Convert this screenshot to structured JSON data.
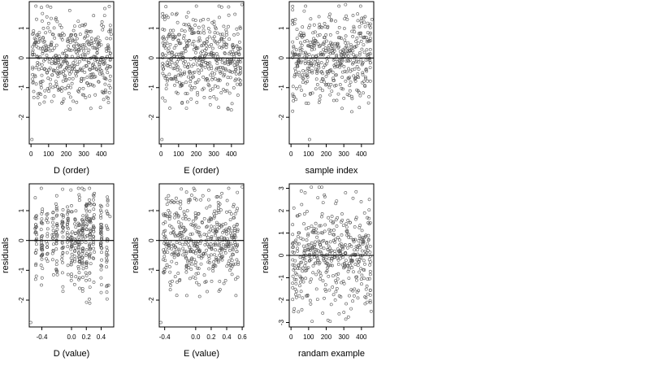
{
  "chart_data": [
    {
      "type": "scatter",
      "xlabel": "D (order)",
      "ylabel": "residuals",
      "xlim": [
        -10,
        470
      ],
      "ylim": [
        -2.9,
        1.9
      ],
      "xticks": [
        0,
        100,
        200,
        300,
        400
      ],
      "xtick_labels": [
        "0",
        "100",
        "200",
        "300",
        "400"
      ],
      "yticks": [
        -2,
        -1,
        0,
        1
      ],
      "ytick_labels": [
        "-2",
        "-1",
        "0",
        "1"
      ],
      "hline": 0,
      "sample_points": [
        [
          5,
          -2.75
        ],
        [
          30,
          0.4
        ],
        [
          65,
          1.5
        ],
        [
          140,
          1.3
        ],
        [
          220,
          1.6
        ],
        [
          300,
          -0.7
        ],
        [
          340,
          -1.7
        ],
        [
          440,
          -1.5
        ],
        [
          455,
          0.8
        ]
      ],
      "n_points": 450,
      "grid": false
    },
    {
      "type": "scatter",
      "xlabel": "E (order)",
      "ylabel": "residuals",
      "xlim": [
        -10,
        470
      ],
      "ylim": [
        -2.9,
        1.9
      ],
      "xticks": [
        0,
        100,
        200,
        300,
        400
      ],
      "xtick_labels": [
        "0",
        "100",
        "200",
        "300",
        "400"
      ],
      "yticks": [
        -2,
        -1,
        0,
        1
      ],
      "ytick_labels": [
        "-2",
        "-1",
        "0",
        "1"
      ],
      "hline": 0,
      "sample_points": [
        [
          5,
          -2.75
        ],
        [
          20,
          1.4
        ],
        [
          90,
          1.5
        ],
        [
          120,
          -1.5
        ],
        [
          240,
          1.3
        ],
        [
          380,
          -1.7
        ],
        [
          460,
          1.8
        ]
      ],
      "n_points": 450,
      "grid": false
    },
    {
      "type": "scatter",
      "xlabel": "sample index",
      "ylabel": "residuals",
      "xlim": [
        -10,
        470
      ],
      "ylim": [
        -2.9,
        1.9
      ],
      "xticks": [
        0,
        100,
        200,
        300,
        400
      ],
      "xtick_labels": [
        "0",
        "100",
        "200",
        "300",
        "400"
      ],
      "yticks": [
        -2,
        -1,
        0,
        1
      ],
      "ytick_labels": [
        "-2",
        "-1",
        "0",
        "1"
      ],
      "hline": 0,
      "sample_points": [
        [
          105,
          -2.75
        ],
        [
          160,
          -1.5
        ],
        [
          290,
          -1.7
        ],
        [
          310,
          1.8
        ],
        [
          460,
          1.3
        ]
      ],
      "n_points": 450,
      "grid": false
    },
    {
      "type": "scatter",
      "xlabel": "D (value)",
      "ylabel": "residuals",
      "xlim": [
        -0.57,
        0.57
      ],
      "ylim": [
        -2.9,
        1.9
      ],
      "xticks": [
        -0.4,
        0.0,
        0.2,
        0.4
      ],
      "xtick_labels": [
        "-0.4",
        "0.0",
        "0.2",
        "0.4"
      ],
      "yticks": [
        -2,
        -1,
        0,
        1
      ],
      "ytick_labels": [
        "-2",
        "-1",
        "0",
        "1"
      ],
      "hline": 0,
      "sample_points": [
        [
          -0.55,
          -2.75
        ],
        [
          -0.2,
          1.5
        ],
        [
          0.17,
          1.7
        ],
        [
          0.15,
          -1.7
        ],
        [
          0.5,
          -1.5
        ],
        [
          0.52,
          0.8
        ]
      ],
      "n_points": 450,
      "grid": false
    },
    {
      "type": "scatter",
      "xlabel": "E (value)",
      "ylabel": "residuals",
      "xlim": [
        -0.47,
        0.62
      ],
      "ylim": [
        -2.9,
        1.9
      ],
      "xticks": [
        -0.4,
        0.0,
        0.2,
        0.4,
        0.6
      ],
      "xtick_labels": [
        "-0.4",
        "0.0",
        "0.2",
        "0.4",
        "0.6"
      ],
      "yticks": [
        -2,
        -1,
        0,
        1
      ],
      "ytick_labels": [
        "-2",
        "-1",
        "0",
        "1"
      ],
      "hline": 0,
      "sample_points": [
        [
          -0.45,
          -2.75
        ],
        [
          -0.35,
          1.5
        ],
        [
          0.3,
          -1.7
        ],
        [
          0.6,
          1.8
        ]
      ],
      "n_points": 450,
      "grid": false
    },
    {
      "type": "scatter",
      "xlabel": "randam example",
      "ylabel": "residuals",
      "xlim": [
        -10,
        470
      ],
      "ylim": [
        -3.2,
        3.2
      ],
      "xticks": [
        0,
        100,
        200,
        300,
        400
      ],
      "xtick_labels": [
        "0",
        "100",
        "200",
        "300",
        "400"
      ],
      "yticks": [
        -3,
        -2,
        -1,
        0,
        1,
        2,
        3
      ],
      "ytick_labels": [
        "-3",
        "-2",
        "-1",
        "0",
        "1",
        "2",
        "3"
      ],
      "hline": 0,
      "sample_points": [
        [
          80,
          2.8
        ],
        [
          210,
          -2.9
        ],
        [
          310,
          2.8
        ],
        [
          445,
          2.5
        ],
        [
          455,
          -2.5
        ]
      ],
      "n_points": 450,
      "grid": false
    }
  ],
  "colors": {
    "points": "#555555",
    "axes": "#000000",
    "background": "#ffffff"
  }
}
